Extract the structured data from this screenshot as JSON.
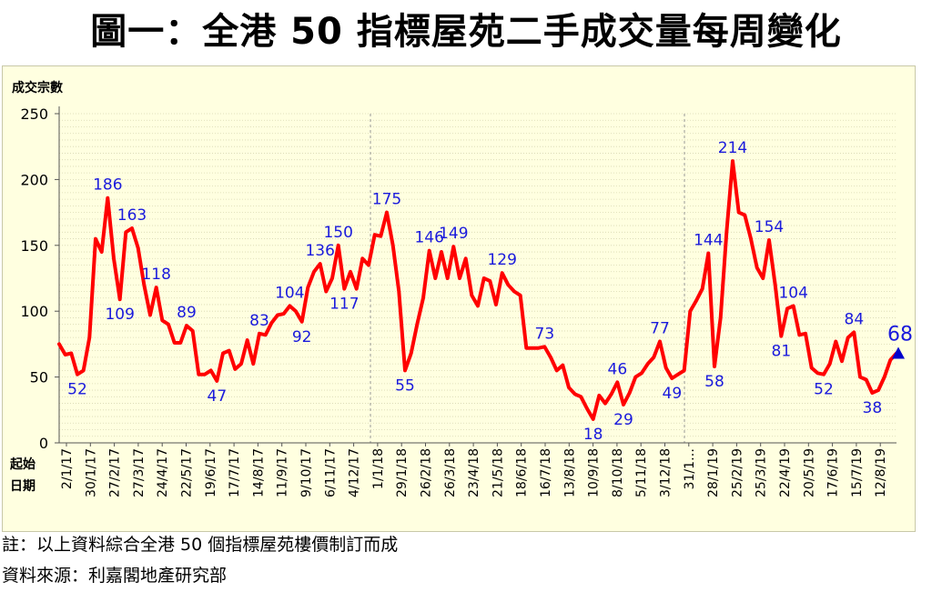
{
  "title": "圖一：全港 50 指標屋苑二手成交量每周變化",
  "notes": {
    "note1": "註：以上資料綜合全港 50 個指標屋苑樓價制訂而成",
    "source": "資料來源：利嘉閣地產研究部"
  },
  "colors": {
    "line": "#ff0000",
    "label": "#1a1adc",
    "marker": "#0000cc",
    "background": "#ffffe0",
    "grid": "#d8d8b0"
  },
  "chart_data": {
    "type": "line",
    "title": "圖一：全港 50 指標屋苑二手成交量每周變化",
    "ylabel": "成交宗數",
    "xlabel_lines": [
      "起始",
      "日期"
    ],
    "ylim": [
      0,
      250
    ],
    "yticks": [
      0,
      50,
      100,
      150,
      200,
      250
    ],
    "grid": true,
    "xtick_labels": [
      "2/1/17",
      "30/1/17",
      "27/2/17",
      "27/3/17",
      "24/4/17",
      "22/5/17",
      "19/6/17",
      "17/7/17",
      "14/8/17",
      "11/9/17",
      "9/10/17",
      "6/11/17",
      "4/12/17",
      "1/1/18",
      "29/1/18",
      "26/2/18",
      "26/3/18",
      "23/4/18",
      "21/5/18",
      "18/6/18",
      "16/7/18",
      "13/8/18",
      "10/9/18",
      "8/10/18",
      "5/11/18",
      "3/12/18",
      "31/1…",
      "28/1/19",
      "25/2/19",
      "25/3/19",
      "22/4/19",
      "20/5/19",
      "17/6/19",
      "15/7/19",
      "12/8/19"
    ],
    "series": [
      {
        "values": [
          75,
          67,
          68,
          52,
          55,
          80,
          155,
          145,
          186,
          140,
          109,
          160,
          163,
          148,
          120,
          97,
          118,
          93,
          90,
          76,
          76,
          89,
          85,
          52,
          52,
          55,
          47,
          68,
          70,
          56,
          60,
          78,
          60,
          83,
          82,
          91,
          97,
          98,
          104,
          100,
          92,
          118,
          130,
          136,
          115,
          125,
          150,
          117,
          130,
          117,
          140,
          135,
          158,
          157,
          175,
          150,
          115,
          55,
          68,
          90,
          110,
          146,
          125,
          145,
          125,
          149,
          125,
          140,
          112,
          104,
          125,
          123,
          105,
          129,
          120,
          115,
          112,
          72,
          72,
          72,
          73,
          65,
          55,
          59,
          42,
          37,
          35,
          26,
          18,
          36,
          30,
          37,
          46,
          29,
          38,
          50,
          53,
          60,
          65,
          77,
          57,
          49,
          52,
          55,
          100,
          108,
          117,
          144,
          58,
          95,
          160,
          214,
          175,
          173,
          155,
          133,
          125,
          154,
          120,
          81,
          102,
          104,
          82,
          83,
          57,
          53,
          52,
          60,
          77,
          62,
          80,
          84,
          50,
          48,
          38,
          40,
          50,
          63,
          68
        ]
      }
    ],
    "annotations": [
      {
        "index": 3,
        "text": "52",
        "pos": "below"
      },
      {
        "index": 8,
        "text": "186",
        "pos": "above"
      },
      {
        "index": 10,
        "text": "109",
        "pos": "below"
      },
      {
        "index": 12,
        "text": "163",
        "pos": "above"
      },
      {
        "index": 16,
        "text": "118",
        "pos": "above"
      },
      {
        "index": 21,
        "text": "89",
        "pos": "above"
      },
      {
        "index": 26,
        "text": "47",
        "pos": "below"
      },
      {
        "index": 33,
        "text": "83",
        "pos": "above"
      },
      {
        "index": 38,
        "text": "104",
        "pos": "above"
      },
      {
        "index": 40,
        "text": "92",
        "pos": "below"
      },
      {
        "index": 43,
        "text": "136",
        "pos": "above"
      },
      {
        "index": 46,
        "text": "150",
        "pos": "above"
      },
      {
        "index": 47,
        "text": "117",
        "pos": "below"
      },
      {
        "index": 54,
        "text": "175",
        "pos": "above"
      },
      {
        "index": 57,
        "text": "55",
        "pos": "below"
      },
      {
        "index": 61,
        "text": "146",
        "pos": "above"
      },
      {
        "index": 65,
        "text": "149",
        "pos": "above"
      },
      {
        "index": 73,
        "text": "129",
        "pos": "above"
      },
      {
        "index": 80,
        "text": "73",
        "pos": "above"
      },
      {
        "index": 88,
        "text": "18",
        "pos": "below"
      },
      {
        "index": 92,
        "text": "46",
        "pos": "above"
      },
      {
        "index": 93,
        "text": "29",
        "pos": "below"
      },
      {
        "index": 99,
        "text": "77",
        "pos": "above"
      },
      {
        "index": 101,
        "text": "49",
        "pos": "below"
      },
      {
        "index": 107,
        "text": "144",
        "pos": "above"
      },
      {
        "index": 108,
        "text": "58",
        "pos": "below"
      },
      {
        "index": 111,
        "text": "214",
        "pos": "above"
      },
      {
        "index": 117,
        "text": "154",
        "pos": "above"
      },
      {
        "index": 119,
        "text": "81",
        "pos": "below"
      },
      {
        "index": 121,
        "text": "104",
        "pos": "above"
      },
      {
        "index": 126,
        "text": "52",
        "pos": "below"
      },
      {
        "index": 131,
        "text": "84",
        "pos": "above"
      },
      {
        "index": 134,
        "text": "38",
        "pos": "below"
      },
      {
        "index": 138,
        "text": "68",
        "pos": "above-large"
      }
    ]
  }
}
